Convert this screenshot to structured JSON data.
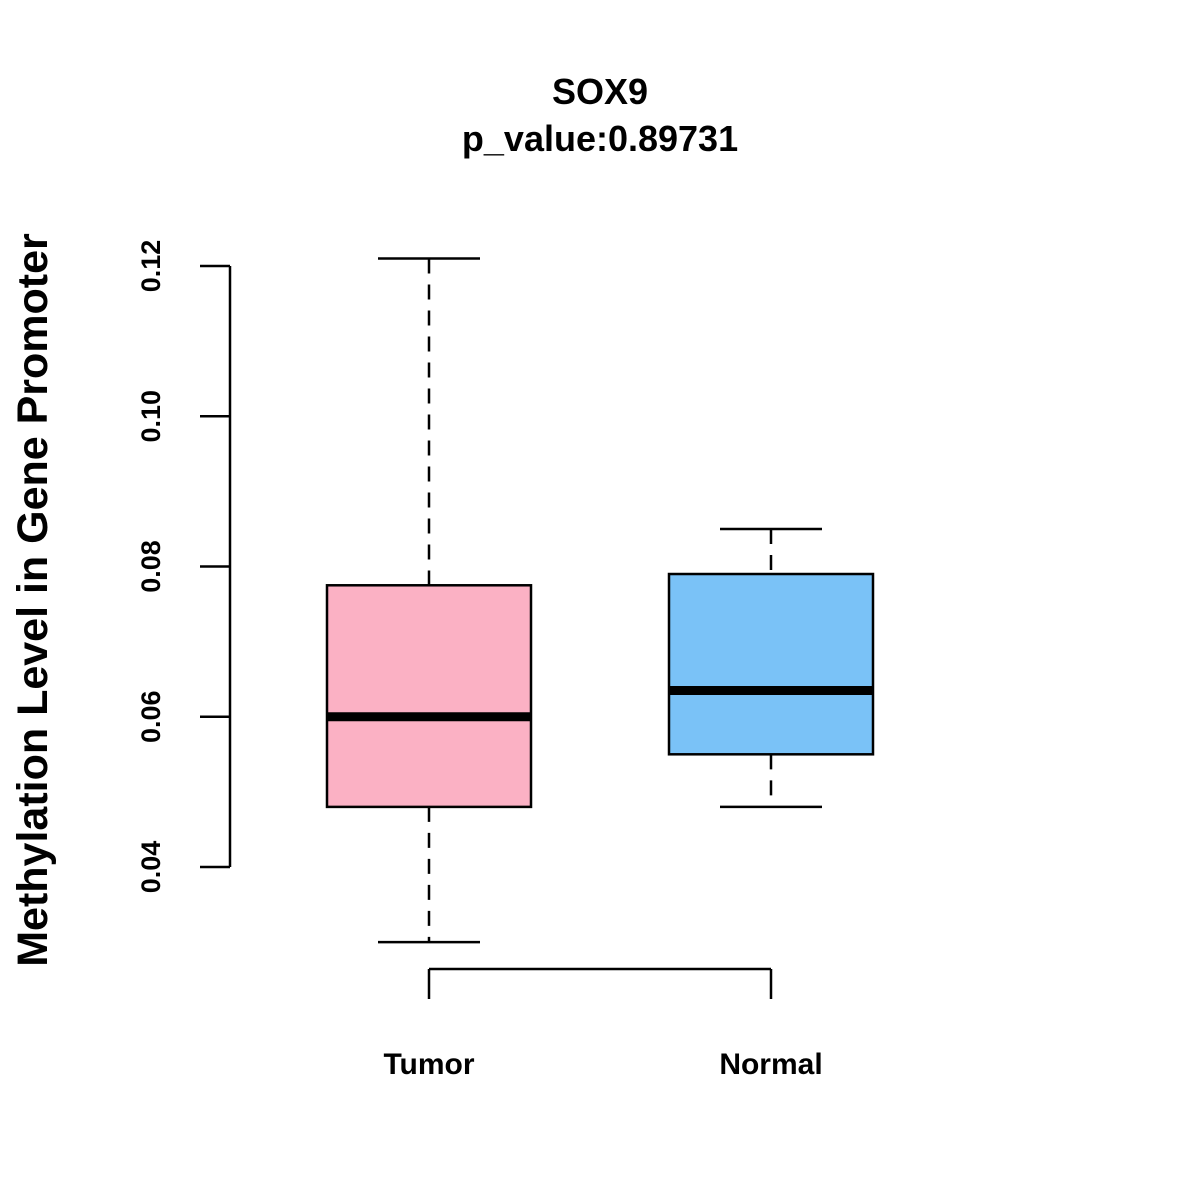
{
  "chart_data": {
    "type": "boxplot",
    "title": "SOX9",
    "subtitle": "p_value:0.89731",
    "ylabel": "Methylation Level in Gene Promoter",
    "xlabel": "",
    "ylim": [
      0.04,
      0.12
    ],
    "yticks": [
      0.04,
      0.06,
      0.08,
      0.1,
      0.12
    ],
    "ytick_labels": [
      "0.04",
      "0.06",
      "0.08",
      "0.10",
      "0.12"
    ],
    "categories": [
      "Tumor",
      "Normal"
    ],
    "series": [
      {
        "name": "Tumor",
        "color": "#FBB1C4",
        "whisker_low": 0.03,
        "q1": 0.048,
        "median": 0.06,
        "q3": 0.0775,
        "whisker_high": 0.121
      },
      {
        "name": "Normal",
        "color": "#7AC2F7",
        "whisker_low": 0.048,
        "q1": 0.055,
        "median": 0.0635,
        "q3": 0.079,
        "whisker_high": 0.085
      }
    ],
    "grid": false,
    "legend": "none"
  }
}
